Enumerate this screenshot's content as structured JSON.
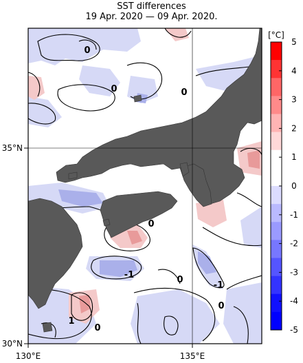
{
  "title": "SST differences",
  "subtitle": "19 Apr. 2020 — 09 Apr. 2020.",
  "axes": {
    "lon_labels": [
      "130°E",
      "135°E"
    ],
    "lat_labels": [
      "35°N",
      "30°N"
    ]
  },
  "colorbar": {
    "unit": "[°C]",
    "ticks": [
      "5",
      "4",
      "3",
      "2",
      "1",
      "0",
      "-1",
      "-2",
      "-3",
      "-4",
      "-5"
    ],
    "range": [
      -5,
      5
    ],
    "colors": [
      "#ff0000",
      "#ff3333",
      "#ff6666",
      "#ff8a8a",
      "#ffb4b4",
      "#ffd8d8",
      "#ffffff",
      "#ffffff",
      "#dcdcff",
      "#babaff",
      "#9a9aff",
      "#7777ff",
      "#5555ff",
      "#3333ff",
      "#1111ff",
      "#0000ff"
    ]
  },
  "contour_labels": [
    "0",
    "0",
    "0",
    "0",
    "0",
    "-1",
    "-1",
    "1",
    "0",
    "0"
  ],
  "colors": {
    "land": "#595959",
    "warm": "#f4c9c9",
    "warm_strong": "#e89a9a",
    "cool": "#d6d9f6",
    "cool_strong": "#aab0ea"
  }
}
